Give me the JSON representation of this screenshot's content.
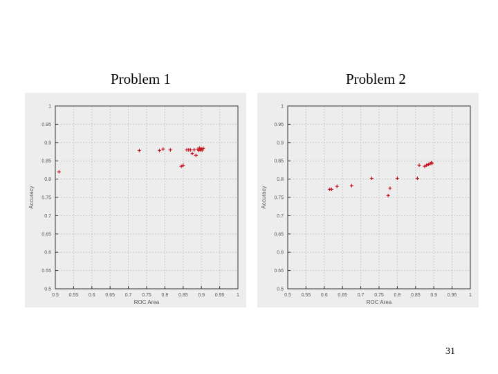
{
  "titles": [
    "Problem 1",
    "Problem 2"
  ],
  "slide_number": "31",
  "colors": {
    "marker": "#c8141e",
    "panel_bg": "#ededed",
    "grid": "#c9c9c9",
    "axis": "#333333"
  },
  "chart_data": [
    {
      "type": "scatter",
      "title": "Problem 1",
      "xlabel": "ROC Area",
      "ylabel": "Accuracy",
      "xlim": [
        0.5,
        1
      ],
      "ylim": [
        0.5,
        1
      ],
      "xticks": [
        "0.5",
        "0.55",
        "0.6",
        "0.65",
        "0.7",
        "0.75",
        "0.8",
        "0.85",
        "0.9",
        "0.95",
        "1"
      ],
      "yticks": [
        "0.5",
        "0.55",
        "0.6",
        "0.65",
        "0.7",
        "0.75",
        "0.8",
        "0.85",
        "0.9",
        "0.95",
        "1"
      ],
      "grid": true,
      "points": [
        [
          0.51,
          0.82
        ],
        [
          0.73,
          0.878
        ],
        [
          0.785,
          0.878
        ],
        [
          0.795,
          0.882
        ],
        [
          0.815,
          0.88
        ],
        [
          0.845,
          0.835
        ],
        [
          0.85,
          0.838
        ],
        [
          0.86,
          0.88
        ],
        [
          0.865,
          0.88
        ],
        [
          0.87,
          0.88
        ],
        [
          0.875,
          0.87
        ],
        [
          0.88,
          0.88
        ],
        [
          0.885,
          0.865
        ],
        [
          0.89,
          0.882
        ],
        [
          0.893,
          0.878
        ],
        [
          0.895,
          0.885
        ],
        [
          0.897,
          0.88
        ],
        [
          0.9,
          0.883
        ],
        [
          0.902,
          0.879
        ],
        [
          0.905,
          0.884
        ]
      ]
    },
    {
      "type": "scatter",
      "title": "Problem 2",
      "xlabel": "ROC Area",
      "ylabel": "Accuracy",
      "xlim": [
        0.5,
        1
      ],
      "ylim": [
        0.5,
        1
      ],
      "xticks": [
        "0.5",
        "0.55",
        "0.6",
        "0.65",
        "0.7",
        "0.75",
        "0.8",
        "0.85",
        "0.9",
        "0.95",
        "1"
      ],
      "yticks": [
        "0.5",
        "0.55",
        "0.6",
        "0.65",
        "0.7",
        "0.75",
        "0.8",
        "0.85",
        "0.9",
        "0.95",
        "1"
      ],
      "grid": true,
      "points": [
        [
          0.615,
          0.772
        ],
        [
          0.62,
          0.772
        ],
        [
          0.635,
          0.78
        ],
        [
          0.675,
          0.782
        ],
        [
          0.73,
          0.802
        ],
        [
          0.775,
          0.755
        ],
        [
          0.78,
          0.775
        ],
        [
          0.8,
          0.802
        ],
        [
          0.855,
          0.802
        ],
        [
          0.86,
          0.838
        ],
        [
          0.875,
          0.835
        ],
        [
          0.88,
          0.838
        ],
        [
          0.885,
          0.84
        ],
        [
          0.89,
          0.842
        ],
        [
          0.893,
          0.845
        ],
        [
          0.895,
          0.843
        ]
      ]
    }
  ]
}
